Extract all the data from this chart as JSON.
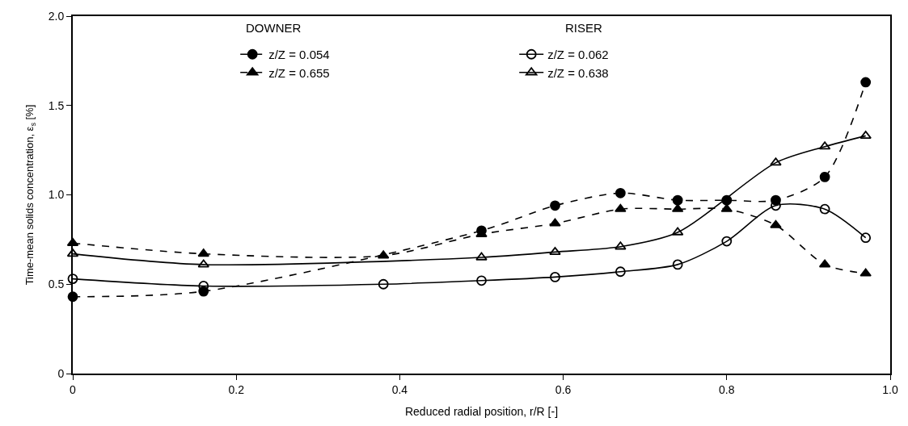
{
  "chart_data": {
    "type": "line",
    "xlabel": "Reduced radial position, r/R [-]",
    "ylabel": "Time-mean solids concentration, ε$_{s}$ [%]",
    "annotations": [
      "DOWNER",
      "RISER"
    ],
    "xlim": [
      0,
      1.0
    ],
    "xticks": [
      0,
      0.2,
      0.4,
      0.6,
      0.8,
      {
        "value": 1.0,
        "label": "1.0"
      }
    ],
    "ylim": [
      0,
      2.0
    ],
    "yticks": [
      0,
      0.5,
      {
        "value": 1.0,
        "label": "1.0"
      },
      1.5,
      {
        "value": 2.0,
        "label": "2.0"
      }
    ],
    "legend": "top",
    "series": [
      {
        "name": "z/Z = 0.054",
        "color": "#000000",
        "marker": "circle",
        "line_style": "dashed",
        "x": [
          0,
          0.16,
          0.5,
          0.59,
          0.67,
          0.74,
          0.8,
          0.86,
          0.92,
          0.97
        ],
        "values": [
          0.43,
          0.46,
          0.8,
          0.94,
          1.01,
          0.97,
          0.97,
          0.97,
          1.1,
          1.63
        ]
      },
      {
        "name": "z/Z = 0.062",
        "color": "#000000",
        "marker": "circle",
        "line_style": "solid",
        "x": [
          0,
          0.16,
          0.38,
          0.5,
          0.59,
          0.67,
          0.74,
          0.8,
          0.86,
          0.92,
          0.97
        ],
        "values": [
          0.53,
          0.49,
          0.5,
          0.52,
          0.54,
          0.57,
          0.61,
          0.74,
          0.94,
          0.92,
          0.76
        ]
      },
      {
        "name": "z/Z = 0.655",
        "color": "#000000",
        "marker": "triangle",
        "line_style": "dashed",
        "x": [
          0,
          0.16,
          0.38,
          0.5,
          0.59,
          0.67,
          0.74,
          0.8,
          0.86,
          0.92,
          0.97
        ],
        "values": [
          0.73,
          0.67,
          0.66,
          0.78,
          0.84,
          0.92,
          0.92,
          0.92,
          0.83,
          0.61,
          0.56
        ]
      },
      {
        "name": "z/Z = 0.638",
        "color": "#000000",
        "marker": "triangle",
        "line_style": "solid",
        "x": [
          0,
          0.16,
          0.38,
          0.5,
          0.59,
          0.67,
          0.74,
          0.86,
          0.92,
          0.97
        ],
        "values": [
          0.67,
          0.61,
          null,
          0.65,
          0.68,
          0.71,
          0.79,
          1.18,
          1.27,
          1.33
        ]
      }
    ]
  }
}
